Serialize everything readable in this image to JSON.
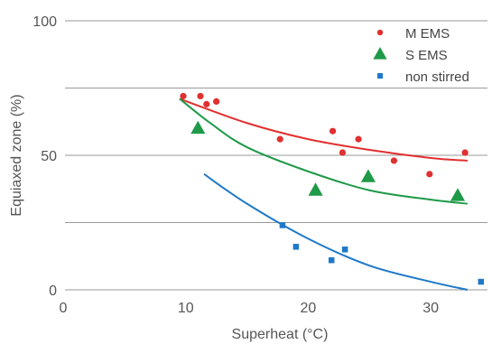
{
  "chart_data": {
    "type": "scatter",
    "title": "",
    "xlabel": "Superheat (°C)",
    "ylabel": "Equiaxed zone (%)",
    "xlim": [
      0,
      35
    ],
    "ylim": [
      0,
      100
    ],
    "xticks": [
      0,
      10,
      20,
      30
    ],
    "yticks": [
      0,
      50,
      100
    ],
    "grid": "horizontal",
    "legend_position": "top-right",
    "series": [
      {
        "name": "M EMS",
        "marker": "circle",
        "color": "#e0302f",
        "points": [
          [
            9.8,
            72
          ],
          [
            11.2,
            72
          ],
          [
            11.7,
            69
          ],
          [
            12.5,
            70
          ],
          [
            17.7,
            56
          ],
          [
            22,
            59
          ],
          [
            22.8,
            51
          ],
          [
            24.1,
            56
          ],
          [
            27,
            48
          ],
          [
            29.9,
            43
          ],
          [
            32.8,
            51
          ]
        ],
        "trend": [
          [
            9.5,
            71
          ],
          [
            15,
            62
          ],
          [
            20,
            56
          ],
          [
            25,
            52
          ],
          [
            30,
            49
          ],
          [
            33,
            48
          ]
        ]
      },
      {
        "name": "S EMS",
        "marker": "triangle",
        "color": "#1f9a48",
        "points": [
          [
            11,
            60
          ],
          [
            20.6,
            37
          ],
          [
            24.9,
            42
          ],
          [
            32.2,
            35
          ]
        ],
        "trend": [
          [
            9.5,
            71
          ],
          [
            12,
            62
          ],
          [
            15,
            53
          ],
          [
            20,
            44
          ],
          [
            25,
            37
          ],
          [
            30,
            33.5
          ],
          [
            33,
            32
          ]
        ]
      },
      {
        "name": "non stirred",
        "marker": "square",
        "color": "#1f78c8",
        "points": [
          [
            17.9,
            24
          ],
          [
            19,
            16
          ],
          [
            21.9,
            11
          ],
          [
            23,
            15
          ],
          [
            34.1,
            3
          ]
        ],
        "trend": [
          [
            11.5,
            43
          ],
          [
            15,
            32
          ],
          [
            20,
            19
          ],
          [
            25,
            9
          ],
          [
            30,
            3
          ],
          [
            33,
            0
          ]
        ]
      }
    ]
  }
}
